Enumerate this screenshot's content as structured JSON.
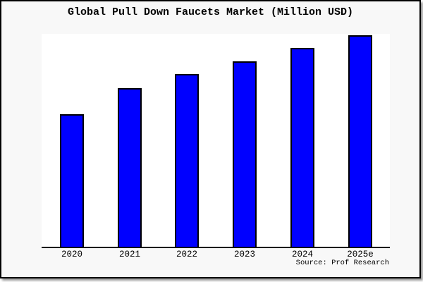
{
  "frame": {
    "background": "#f8f8f8",
    "border_color": "#000000",
    "plot_background": "#ffffff"
  },
  "chart_data": {
    "type": "bar",
    "title": "Global Pull Down Faucets Market (Million USD)",
    "categories": [
      "2020",
      "2021",
      "2022",
      "2023",
      "2024",
      "2025e"
    ],
    "values": [
      188,
      225,
      245,
      263,
      282,
      300
    ],
    "value_note": "no y-axis ticks shown; values are relative bar heights",
    "xlabel": "",
    "ylabel": "",
    "ylim": [
      0,
      302
    ],
    "grid": false,
    "legend": false,
    "bar_color": "#0000ff",
    "bar_edge_color": "#000000",
    "axis_line_color": "#000000"
  },
  "source": {
    "label": "Source: Prof Research"
  }
}
